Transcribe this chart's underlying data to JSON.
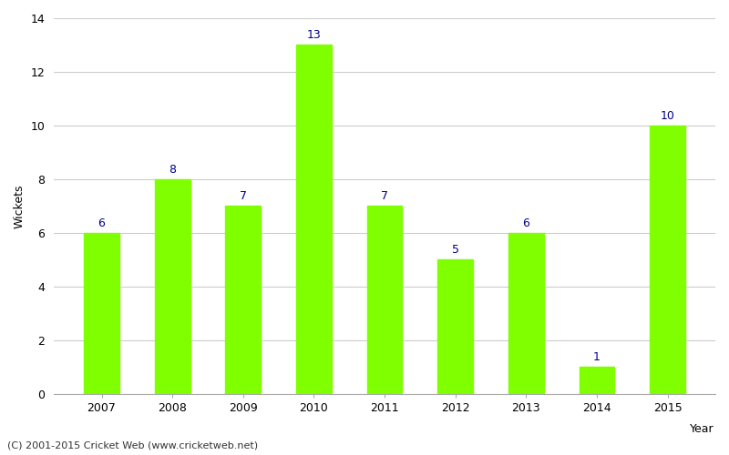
{
  "categories": [
    "2007",
    "2008",
    "2009",
    "2010",
    "2011",
    "2012",
    "2013",
    "2014",
    "2015"
  ],
  "values": [
    6,
    8,
    7,
    13,
    7,
    5,
    6,
    1,
    10
  ],
  "bar_color": "#7FFF00",
  "bar_edge_color": "#7FFF00",
  "label_color": "#00008B",
  "ylabel": "Wickets",
  "ylim": [
    0,
    14
  ],
  "yticks": [
    0,
    2,
    4,
    6,
    8,
    10,
    12,
    14
  ],
  "tick_fontsize": 9,
  "label_fontsize": 9,
  "grid_color": "#cccccc",
  "background_color": "#ffffff",
  "footer_text": "(C) 2001-2015 Cricket Web (www.cricketweb.net)",
  "footer_fontsize": 8,
  "footer_color": "#333333",
  "year_label": "Year",
  "year_label_fontsize": 9
}
